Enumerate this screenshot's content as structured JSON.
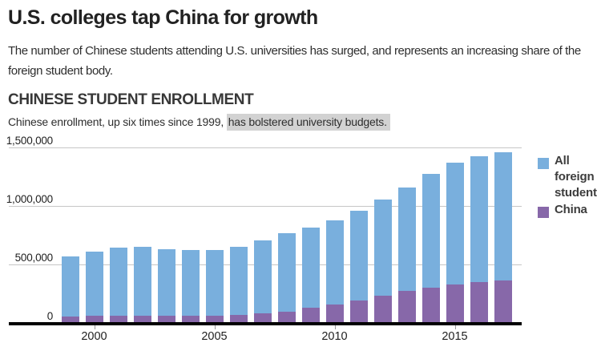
{
  "page": {
    "title": "U.S. colleges tap China for growth",
    "subtitle": "The number of Chinese students attending U.S. universities has surged, and represents an increasing share of the foreign student body.",
    "section_header": "CHINESE STUDENT ENROLLMENT",
    "caption_plain": "Chinese enrollment, up six times since 1999, ",
    "caption_highlight": "has bolstered university budgets."
  },
  "chart_data": {
    "type": "bar",
    "subtype": "stacked-bar",
    "title": "CHINESE STUDENT ENROLLMENT",
    "x": [
      1999,
      2000,
      2001,
      2002,
      2003,
      2004,
      2005,
      2006,
      2007,
      2008,
      2009,
      2010,
      2011,
      2012,
      2013,
      2014,
      2015,
      2016,
      2017
    ],
    "series": [
      {
        "name": "China",
        "color": "#8768a9",
        "values": [
          54466,
          59939,
          63211,
          64757,
          61765,
          62523,
          62582,
          67723,
          81127,
          98235,
          127628,
          157558,
          194029,
          235597,
          274439,
          304040,
          328547,
          350755,
          363341
        ]
      },
      {
        "name": "All foreign students",
        "color": "#79afdd",
        "values": [
          514723,
          547867,
          582996,
          586323,
          572509,
          565039,
          564766,
          582984,
          623805,
          671616,
          690923,
          723277,
          764495,
          819644,
          886052,
          974926,
          1043839,
          1078822,
          1094792
        ]
      }
    ],
    "stack_order_bottom_to_top": [
      "China",
      "All foreign students"
    ],
    "ylim": [
      0,
      1500000
    ],
    "y_ticks": [
      0,
      500000,
      1000000,
      1500000
    ],
    "y_tick_labels": [
      "0",
      "500,000",
      "1,000,000",
      "1,500,000"
    ],
    "x_tick_years": [
      2000,
      2005,
      2010,
      2015
    ],
    "x_tick_labels": [
      "2000",
      "2005",
      "2010",
      "2015"
    ],
    "grid": "horizontal",
    "legend_position": "right",
    "legend": [
      {
        "label": "All foreign students",
        "color": "#79afdd"
      },
      {
        "label": "China",
        "color": "#8768a9"
      }
    ]
  },
  "colors": {
    "background": "#ffffff",
    "gridline": "#c6c6c6",
    "axis": "#000000",
    "caption_highlight_bg": "#d2d2d2",
    "blue": "#79afdd",
    "purple": "#8768a9"
  }
}
